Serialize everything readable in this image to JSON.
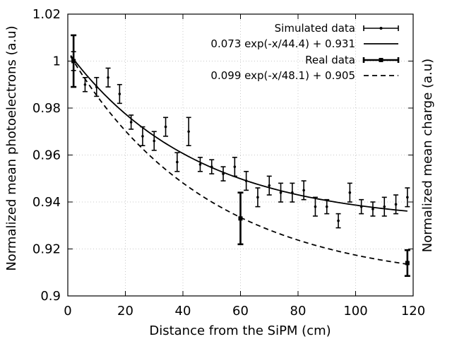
{
  "chart_data": {
    "type": "scatter",
    "title": "",
    "xlabel": "Distance from the SiPM (cm)",
    "ylabel": "Normalized mean photoelectrons (a.u)",
    "y2label": "Normalized mean charge (a.u)",
    "xlim": [
      0,
      120
    ],
    "ylim": [
      0.9,
      1.02
    ],
    "xticks": [
      0,
      20,
      40,
      60,
      80,
      100,
      120
    ],
    "yticks": [
      0.9,
      0.92,
      0.94,
      0.96,
      0.98,
      1.0,
      1.02
    ],
    "xtick_labels": [
      "0",
      "20",
      "40",
      "60",
      "80",
      "100",
      "120"
    ],
    "ytick_labels": [
      "0.9",
      "0.92",
      "0.94",
      "0.96",
      "0.98",
      "1",
      "1.02"
    ],
    "grid": true,
    "legend_position": "top-right",
    "series": [
      {
        "name": "Simulated data",
        "kind": "errorbars",
        "style": "thin",
        "x": [
          2,
          6,
          10,
          14,
          18,
          22,
          26,
          30,
          34,
          38,
          42,
          46,
          50,
          54,
          58,
          62,
          66,
          70,
          74,
          78,
          82,
          86,
          90,
          94,
          98,
          102,
          106,
          110,
          114,
          118
        ],
        "y": [
          1.0,
          0.99,
          0.989,
          0.993,
          0.986,
          0.974,
          0.968,
          0.966,
          0.972,
          0.957,
          0.97,
          0.956,
          0.955,
          0.952,
          0.955,
          0.949,
          0.942,
          0.947,
          0.944,
          0.944,
          0.945,
          0.938,
          0.938,
          0.932,
          0.944,
          0.938,
          0.937,
          0.938,
          0.939,
          0.942
        ],
        "err": [
          0.004,
          0.003,
          0.004,
          0.004,
          0.004,
          0.003,
          0.004,
          0.004,
          0.004,
          0.004,
          0.006,
          0.003,
          0.003,
          0.003,
          0.004,
          0.004,
          0.004,
          0.004,
          0.004,
          0.004,
          0.004,
          0.004,
          0.003,
          0.003,
          0.004,
          0.003,
          0.003,
          0.004,
          0.004,
          0.004
        ]
      },
      {
        "name": "0.073 exp(-x/44.4) + 0.931",
        "kind": "fit",
        "style": "solid",
        "a": 0.073,
        "tau": 44.4,
        "c": 0.931,
        "x_range": [
          1,
          118
        ]
      },
      {
        "name": "Real data",
        "kind": "errorbars",
        "style": "thick",
        "x": [
          2,
          60,
          118
        ],
        "y": [
          1.0,
          0.933,
          0.914
        ],
        "err": [
          0.011,
          0.011,
          0.0055
        ]
      },
      {
        "name": "0.099 exp(-x/48.1) + 0.905",
        "kind": "fit",
        "style": "dashed",
        "a": 0.099,
        "tau": 48.1,
        "c": 0.905,
        "x_range": [
          1,
          118
        ]
      }
    ]
  }
}
